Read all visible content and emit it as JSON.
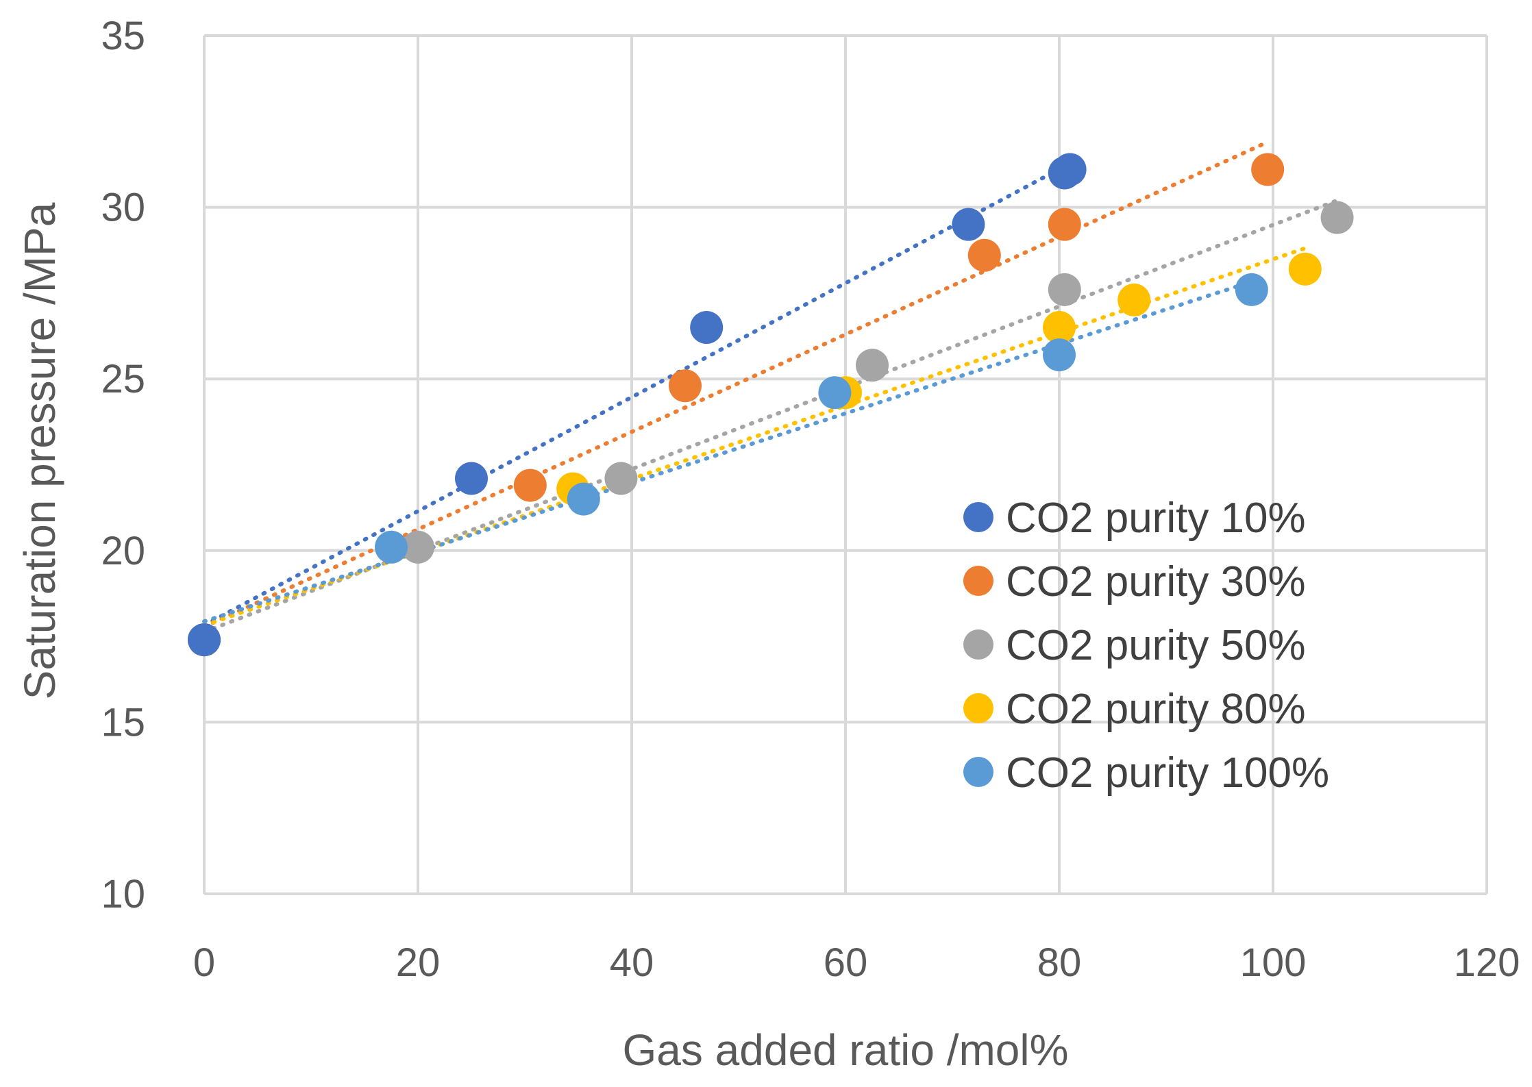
{
  "chart_data": {
    "type": "scatter",
    "title": "",
    "xlabel": "Gas added ratio /mol%",
    "ylabel": "Saturation pressure /MPa",
    "xlim": [
      0,
      120
    ],
    "ylim": [
      10,
      35
    ],
    "xticks": [
      0,
      20,
      40,
      60,
      80,
      100,
      120
    ],
    "yticks": [
      10,
      15,
      20,
      25,
      30,
      35
    ],
    "grid": true,
    "trendlines": "dotted linear fit per series",
    "legend_position": "center-right inside plot",
    "series": [
      {
        "name": "CO2 purity 10%",
        "color": "#4472C4",
        "points": [
          [
            0,
            17.4
          ],
          [
            25,
            22.1
          ],
          [
            47,
            26.5
          ],
          [
            71.5,
            29.5
          ],
          [
            80.5,
            31.0
          ],
          [
            81,
            31.1
          ]
        ]
      },
      {
        "name": "CO2 purity 30%",
        "color": "#ED7D31",
        "points": [
          [
            0,
            17.4
          ],
          [
            30.5,
            21.9
          ],
          [
            45,
            24.8
          ],
          [
            73,
            28.6
          ],
          [
            80.5,
            29.5
          ],
          [
            99.5,
            31.1
          ]
        ]
      },
      {
        "name": "CO2 purity 50%",
        "color": "#A5A5A5",
        "points": [
          [
            0,
            17.4
          ],
          [
            20,
            20.1
          ],
          [
            39,
            22.1
          ],
          [
            62.5,
            25.4
          ],
          [
            80.5,
            27.6
          ],
          [
            106,
            29.7
          ]
        ]
      },
      {
        "name": "CO2 purity 80%",
        "color": "#FFC000",
        "points": [
          [
            0,
            17.4
          ],
          [
            34.5,
            21.8
          ],
          [
            60,
            24.6
          ],
          [
            80,
            26.5
          ],
          [
            87,
            27.3
          ],
          [
            103,
            28.2
          ]
        ]
      },
      {
        "name": "CO2 purity 100%",
        "color": "#5B9BD5",
        "points": [
          [
            0,
            17.4
          ],
          [
            17.5,
            20.1
          ],
          [
            35.5,
            21.5
          ],
          [
            59,
            24.6
          ],
          [
            80,
            25.7
          ],
          [
            98,
            27.6
          ]
        ]
      }
    ]
  }
}
